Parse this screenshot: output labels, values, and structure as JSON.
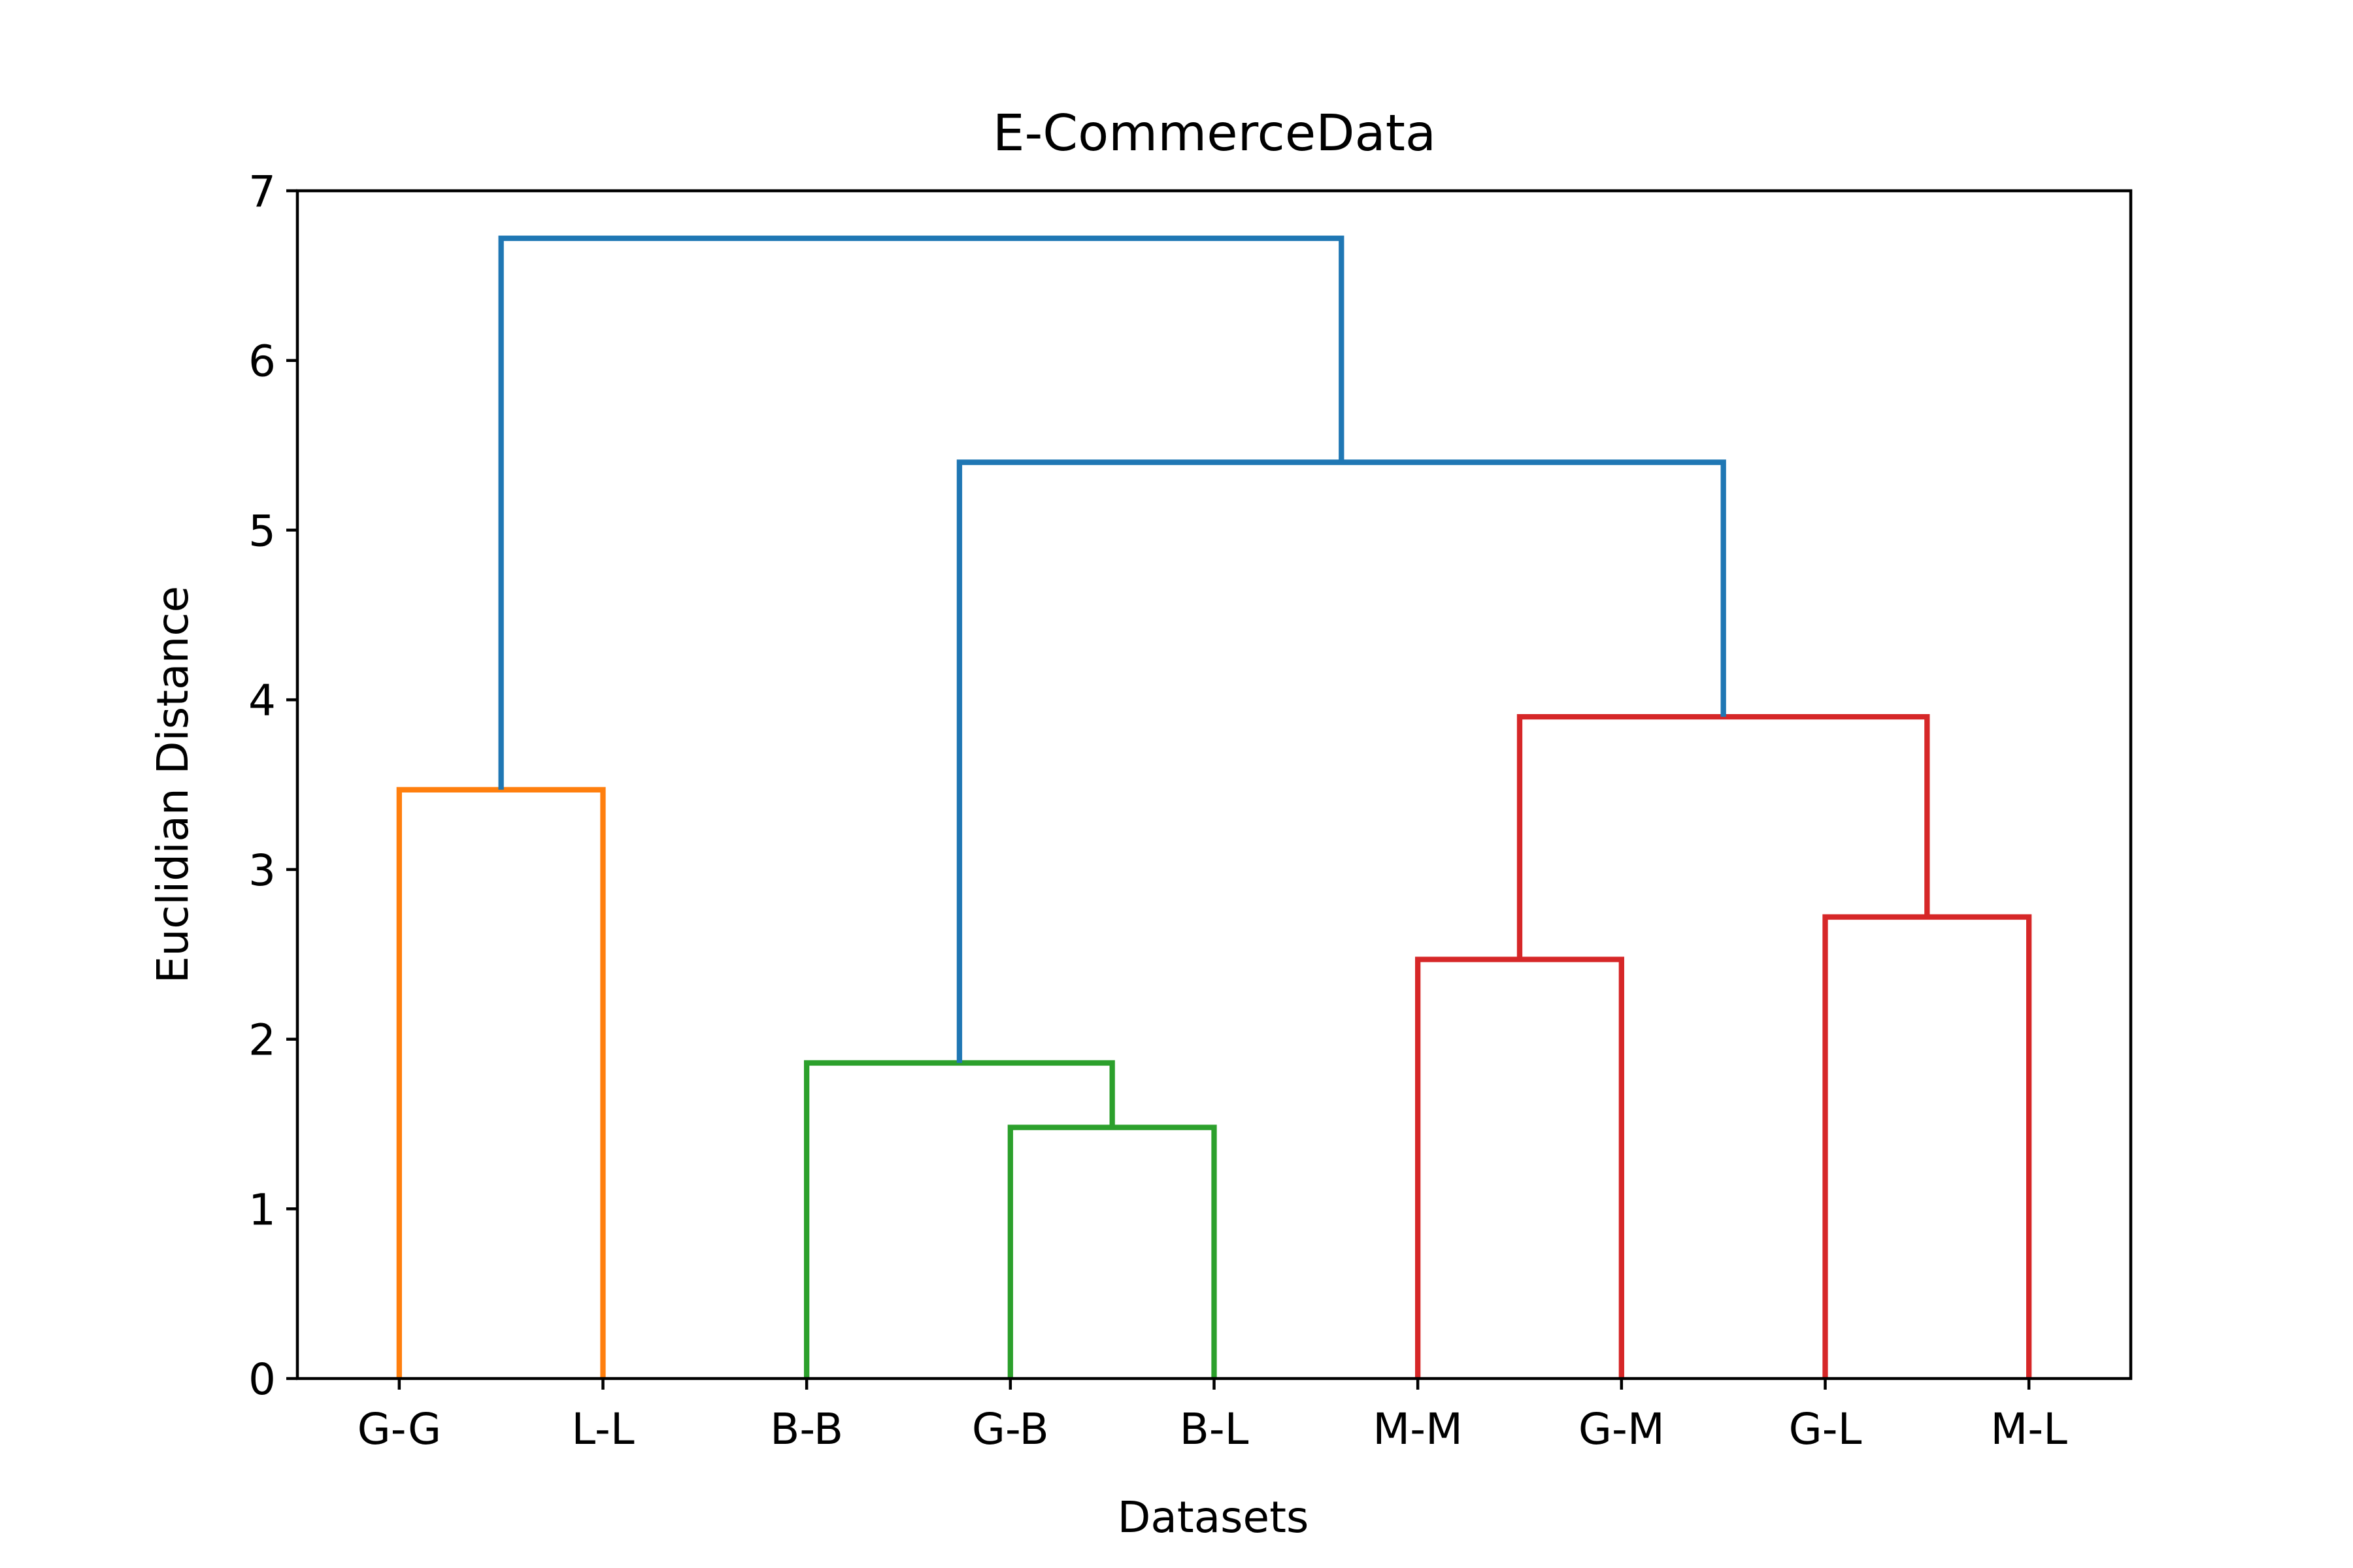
{
  "chart_data": {
    "type": "dendrogram",
    "title": "E-CommerceData",
    "xlabel": "Datasets",
    "ylabel": "Euclidian Distance",
    "ylim": [
      0,
      7
    ],
    "yticks": [
      0,
      1,
      2,
      3,
      4,
      5,
      6,
      7
    ],
    "grid": false,
    "leaves": [
      "G-G",
      "L-L",
      "B-B",
      "G-B",
      "B-L",
      "M-M",
      "G-M",
      "G-L",
      "M-L"
    ],
    "colors": {
      "orange": "#ff7f0e",
      "green": "#2ca02c",
      "red": "#d62728",
      "blue": "#1f77b4"
    },
    "merges": [
      {
        "left": "G-B",
        "right": "B-L",
        "height": 1.48,
        "color": "green"
      },
      {
        "left": "B-B",
        "right": "G-B + B-L",
        "height": 1.86,
        "color": "green"
      },
      {
        "left": "M-M",
        "right": "G-M",
        "height": 2.47,
        "color": "red"
      },
      {
        "left": "G-L",
        "right": "M-L",
        "height": 2.72,
        "color": "red"
      },
      {
        "left": "G-G",
        "right": "L-L",
        "height": 3.47,
        "color": "orange"
      },
      {
        "left": "M-M + G-M",
        "right": "G-L + M-L",
        "height": 3.9,
        "color": "red"
      },
      {
        "left": "B-B + G-B + B-L",
        "right": "M-M + G-M + G-L + M-L",
        "height": 5.4,
        "color": "blue"
      },
      {
        "left": "G-G + L-L",
        "right": "B-B + G-B + B-L + M-M + G-M + G-L + M-L",
        "height": 6.72,
        "color": "blue"
      }
    ]
  }
}
